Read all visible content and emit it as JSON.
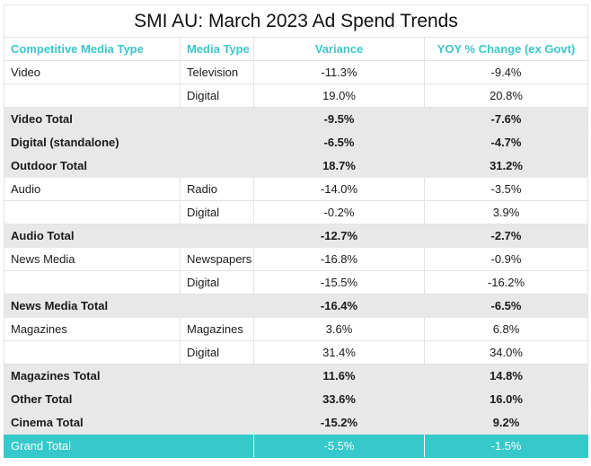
{
  "title": "SMI AU: March 2023 Ad Spend Trends",
  "headers": {
    "competitive_media_type": "Competitive Media Type",
    "media_type": "Media Type",
    "variance": "Variance",
    "yoy": "YOY % Change (ex Govt)"
  },
  "rows": [
    {
      "kind": "detail",
      "competitive": "Video",
      "media": "Television",
      "variance": "-11.3%",
      "yoy": "-9.4%"
    },
    {
      "kind": "detail",
      "competitive": "",
      "media": "Digital",
      "variance": "19.0%",
      "yoy": "20.8%"
    },
    {
      "kind": "total",
      "competitive": "Video Total",
      "media": "",
      "variance": "-9.5%",
      "yoy": "-7.6%"
    },
    {
      "kind": "total",
      "competitive": "Digital (standalone)",
      "media": "",
      "variance": "-6.5%",
      "yoy": "-4.7%"
    },
    {
      "kind": "total",
      "competitive": "Outdoor Total",
      "media": "",
      "variance": "18.7%",
      "yoy": "31.2%"
    },
    {
      "kind": "detail",
      "competitive": "Audio",
      "media": "Radio",
      "variance": "-14.0%",
      "yoy": "-3.5%"
    },
    {
      "kind": "detail",
      "competitive": "",
      "media": "Digital",
      "variance": "-0.2%",
      "yoy": "3.9%"
    },
    {
      "kind": "total",
      "competitive": "Audio Total",
      "media": "",
      "variance": "-12.7%",
      "yoy": "-2.7%"
    },
    {
      "kind": "detail",
      "competitive": "News Media",
      "media": "Newspapers",
      "variance": "-16.8%",
      "yoy": "-0.9%"
    },
    {
      "kind": "detail",
      "competitive": "",
      "media": "Digital",
      "variance": "-15.5%",
      "yoy": "-16.2%"
    },
    {
      "kind": "total",
      "competitive": "News Media Total",
      "media": "",
      "variance": "-16.4%",
      "yoy": "-6.5%"
    },
    {
      "kind": "detail",
      "competitive": "Magazines",
      "media": "Magazines",
      "variance": "3.6%",
      "yoy": "6.8%"
    },
    {
      "kind": "detail",
      "competitive": "",
      "media": "Digital",
      "variance": "31.4%",
      "yoy": "34.0%"
    },
    {
      "kind": "total",
      "competitive": "Magazines Total",
      "media": "",
      "variance": "11.6%",
      "yoy": "14.8%"
    },
    {
      "kind": "total",
      "competitive": "Other Total",
      "media": "",
      "variance": "33.6%",
      "yoy": "16.0%"
    },
    {
      "kind": "total",
      "competitive": "Cinema Total",
      "media": "",
      "variance": "-15.2%",
      "yoy": "9.2%"
    }
  ],
  "grand_total": {
    "label": "Grand Total",
    "variance": "-5.5%",
    "yoy": "-1.5%"
  },
  "colors": {
    "accent": "#35c9cb",
    "header_text": "#3cc6cc",
    "total_band": "#e8e8e8"
  }
}
